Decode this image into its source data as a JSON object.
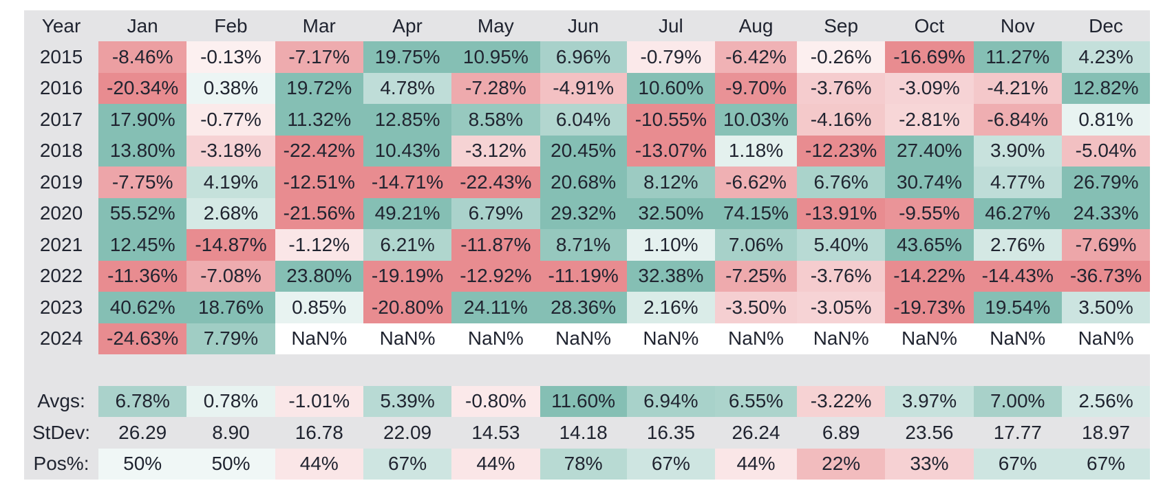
{
  "chart_data": {
    "type": "heatmap",
    "columns": [
      "Year",
      "Jan",
      "Feb",
      "Mar",
      "Apr",
      "May",
      "Jun",
      "Jul",
      "Aug",
      "Sep",
      "Oct",
      "Nov",
      "Dec"
    ],
    "rows": [
      {
        "year": "2015",
        "values": [
          -8.46,
          -0.13,
          -7.17,
          19.75,
          10.95,
          6.96,
          -0.79,
          -6.42,
          -0.26,
          -16.69,
          11.27,
          4.23
        ]
      },
      {
        "year": "2016",
        "values": [
          -20.34,
          0.38,
          19.72,
          4.78,
          -7.28,
          -4.91,
          10.6,
          -9.7,
          -3.76,
          -3.09,
          -4.21,
          12.82
        ]
      },
      {
        "year": "2017",
        "values": [
          17.9,
          -0.77,
          11.32,
          12.85,
          8.58,
          6.04,
          -10.55,
          10.03,
          -4.16,
          -2.81,
          -6.84,
          0.81
        ]
      },
      {
        "year": "2018",
        "values": [
          13.8,
          -3.18,
          -22.42,
          10.43,
          -3.12,
          20.45,
          -13.07,
          1.18,
          -12.23,
          27.4,
          3.9,
          -5.04
        ]
      },
      {
        "year": "2019",
        "values": [
          -7.75,
          4.19,
          -12.51,
          -14.71,
          -22.43,
          20.68,
          8.12,
          -6.62,
          6.76,
          30.74,
          4.77,
          26.79
        ]
      },
      {
        "year": "2020",
        "values": [
          55.52,
          2.68,
          -21.56,
          49.21,
          6.79,
          29.32,
          32.5,
          74.15,
          -13.91,
          -9.55,
          46.27,
          24.33
        ]
      },
      {
        "year": "2021",
        "values": [
          12.45,
          -14.87,
          -1.12,
          6.21,
          -11.87,
          8.71,
          1.1,
          7.06,
          5.4,
          43.65,
          2.76,
          -7.69
        ]
      },
      {
        "year": "2022",
        "values": [
          -11.36,
          -7.08,
          23.8,
          -19.19,
          -12.92,
          -11.19,
          32.38,
          -7.25,
          -3.76,
          -14.22,
          -14.43,
          -36.73
        ]
      },
      {
        "year": "2023",
        "values": [
          40.62,
          18.76,
          0.85,
          -20.8,
          24.11,
          28.36,
          2.16,
          -3.5,
          -3.05,
          -19.73,
          19.54,
          3.5
        ]
      },
      {
        "year": "2024",
        "values": [
          -24.63,
          7.79,
          null,
          null,
          null,
          null,
          null,
          null,
          null,
          null,
          null,
          null
        ]
      }
    ],
    "stats": [
      {
        "label": "Avgs:",
        "format": "pct2",
        "colorize": "returns",
        "values": [
          6.78,
          0.78,
          -1.01,
          5.39,
          -0.8,
          11.6,
          6.94,
          6.55,
          -3.22,
          3.97,
          7.0,
          2.56
        ]
      },
      {
        "label": "StDev:",
        "format": "num2",
        "colorize": "none",
        "values": [
          26.29,
          8.9,
          16.78,
          22.09,
          14.53,
          14.18,
          16.35,
          26.24,
          6.89,
          23.56,
          17.77,
          18.97
        ]
      },
      {
        "label": "Pos%:",
        "format": "pct0",
        "colorize": "posshare",
        "values": [
          50,
          50,
          44,
          67,
          44,
          78,
          67,
          44,
          22,
          33,
          67,
          67
        ]
      }
    ],
    "nan_label": "NaN%"
  },
  "style": {
    "positive_color": "#85bfb4",
    "negative_color": "#e88c90",
    "neutral_bg": "#e4e4e6",
    "nan_bg": "#ffffff",
    "text_color": "#202430",
    "page_bg": "#ffffff"
  }
}
